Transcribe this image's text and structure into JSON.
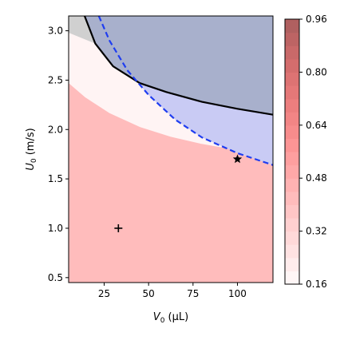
{
  "chart_data": {
    "type": "contour",
    "x_axis": {
      "label_main": "V",
      "label_sub": "0",
      "label_unit": " (μL)",
      "range": [
        5,
        120
      ],
      "ticks": [
        25,
        50,
        75,
        100
      ],
      "tick_labels": [
        "25",
        "50",
        "75",
        "100"
      ]
    },
    "y_axis": {
      "label_main": "U",
      "label_sub": "0",
      "label_unit": " (m/s)",
      "range": [
        0.45,
        3.15
      ],
      "ticks": [
        0.5,
        1.0,
        1.5,
        2.0,
        2.5,
        3.0
      ],
      "tick_labels": [
        "0.5",
        "1.0",
        "1.5",
        "2.0",
        "2.5",
        "3.0"
      ]
    },
    "colorbar": {
      "range": [
        0.16,
        0.96
      ],
      "ticks": [
        0.16,
        0.32,
        0.48,
        0.64,
        0.8,
        0.96
      ],
      "tick_labels": [
        "0.16",
        "0.32",
        "0.48",
        "0.64",
        "0.80",
        "0.96"
      ],
      "levels": [
        0.16,
        0.2,
        0.24,
        0.28,
        0.32,
        0.36,
        0.4,
        0.44,
        0.48,
        0.52,
        0.56,
        0.6,
        0.64,
        0.68,
        0.72,
        0.76,
        0.8,
        0.84,
        0.88,
        0.92,
        0.96
      ],
      "colors": [
        "#fff6f6",
        "#ffecec",
        "#ffe2e2",
        "#ffd9d9",
        "#ffd0d0",
        "#ffc6c6",
        "#ffbcbc",
        "#ffb2b2",
        "#ffa8a8",
        "#fe9f9f",
        "#fc9595",
        "#f78c8c",
        "#f28585",
        "#ec7e7e",
        "#e57878",
        "#dd7373",
        "#d46d6d",
        "#c96969",
        "#bd6464",
        "#b06060"
      ]
    },
    "boundaries": [
      {
        "style": "solid",
        "color": "#000000",
        "points": [
          [
            14,
            3.15
          ],
          [
            20,
            2.87
          ],
          [
            30,
            2.64
          ],
          [
            45,
            2.47
          ],
          [
            60,
            2.38
          ],
          [
            80,
            2.28
          ],
          [
            100,
            2.21
          ],
          [
            120,
            2.15
          ]
        ]
      },
      {
        "style": "dashed",
        "color": "#1f3df0",
        "points": [
          [
            22,
            3.15
          ],
          [
            28,
            2.9
          ],
          [
            38,
            2.6
          ],
          [
            50,
            2.35
          ],
          [
            65,
            2.1
          ],
          [
            80,
            1.92
          ],
          [
            100,
            1.76
          ],
          [
            120,
            1.64
          ]
        ]
      }
    ],
    "regions": [
      {
        "color": "#a8b0cc",
        "description": "above solid boundary"
      },
      {
        "color": "#c9cbf4",
        "description": "between solid and dashed boundaries"
      },
      {
        "color": "#d0d0d0",
        "description": "upper-left corner above solid boundary"
      }
    ],
    "markers": [
      {
        "symbol": "plus",
        "x": 33,
        "y": 1.0
      },
      {
        "symbol": "star",
        "x": 100,
        "y": 1.7
      }
    ]
  }
}
